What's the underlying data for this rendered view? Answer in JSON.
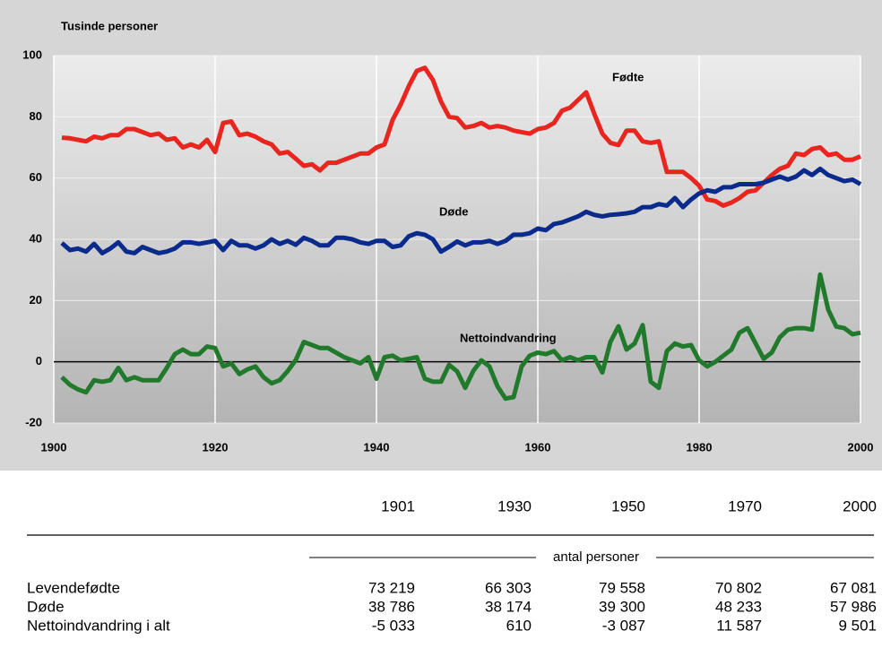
{
  "chart_data": {
    "type": "line",
    "ylabel": "Tusinde personer",
    "x": [
      1901,
      1902,
      1903,
      1904,
      1905,
      1906,
      1907,
      1908,
      1909,
      1910,
      1911,
      1912,
      1913,
      1914,
      1915,
      1916,
      1917,
      1918,
      1919,
      1920,
      1921,
      1922,
      1923,
      1924,
      1925,
      1926,
      1927,
      1928,
      1929,
      1930,
      1931,
      1932,
      1933,
      1934,
      1935,
      1936,
      1937,
      1938,
      1939,
      1940,
      1941,
      1942,
      1943,
      1944,
      1945,
      1946,
      1947,
      1948,
      1949,
      1950,
      1951,
      1952,
      1953,
      1954,
      1955,
      1956,
      1957,
      1958,
      1959,
      1960,
      1961,
      1962,
      1963,
      1964,
      1965,
      1966,
      1967,
      1968,
      1969,
      1970,
      1971,
      1972,
      1973,
      1974,
      1975,
      1976,
      1977,
      1978,
      1979,
      1980,
      1981,
      1982,
      1983,
      1984,
      1985,
      1986,
      1987,
      1988,
      1989,
      1990,
      1991,
      1992,
      1993,
      1994,
      1995,
      1996,
      1997,
      1998,
      1999,
      2000
    ],
    "series": [
      {
        "name": "Fødte",
        "color": "#e8261f",
        "values": [
          73.2,
          73,
          72.5,
          72,
          73.5,
          73,
          74,
          74,
          76,
          76,
          75,
          74,
          74.5,
          72.5,
          73,
          70,
          71,
          70,
          72.5,
          68.5,
          78,
          78.5,
          74,
          74.5,
          73.5,
          72,
          71,
          68,
          68.5,
          66.3,
          64,
          64.5,
          62.5,
          65,
          65,
          66,
          67,
          68,
          68,
          70,
          71,
          79,
          84,
          90,
          95,
          96,
          92,
          85,
          80,
          79.6,
          76.5,
          77,
          78,
          76.5,
          77,
          76.5,
          75.5,
          75,
          74.5,
          76,
          76.5,
          78,
          82,
          83,
          85.5,
          88,
          81,
          74.5,
          71.5,
          70.8,
          75.5,
          75.5,
          72,
          71.5,
          72,
          62,
          62,
          62,
          60,
          57.5,
          53,
          52.5,
          51,
          52,
          53.5,
          55.5,
          56,
          58.5,
          61,
          63,
          64,
          68,
          67.5,
          69.5,
          70,
          67.5,
          68,
          66,
          66,
          67.1
        ]
      },
      {
        "name": "Døde",
        "color": "#0a2a8c",
        "values": [
          38.8,
          36.5,
          37,
          36,
          38.5,
          35.5,
          37,
          39,
          36,
          35.5,
          37.5,
          36.5,
          35.5,
          36,
          37,
          39,
          39,
          38.5,
          39,
          39.5,
          36.5,
          39.5,
          38,
          38,
          37,
          38,
          40,
          38.5,
          39.5,
          38.2,
          40.5,
          39.5,
          38,
          38,
          40.5,
          40.5,
          40,
          39,
          38.5,
          39.5,
          39.5,
          37.5,
          38,
          41,
          42,
          41.5,
          40,
          36,
          37.5,
          39.3,
          38,
          39,
          39,
          39.5,
          38.5,
          39.5,
          41.5,
          41.5,
          42,
          43.5,
          43,
          45,
          45.5,
          46.5,
          47.5,
          49,
          48,
          47.5,
          48,
          48.2,
          48.5,
          49,
          50.5,
          50.5,
          51.5,
          51,
          53.5,
          50.5,
          53,
          55,
          56,
          55.5,
          57,
          57,
          58,
          58,
          58,
          58.5,
          59.5,
          60.5,
          59.5,
          60.5,
          62.5,
          61,
          63,
          61,
          60,
          59,
          59.5,
          58
        ]
      },
      {
        "name": "Nettoindvandring",
        "color": "#217a2b",
        "values": [
          -5,
          -7.5,
          -9,
          -10,
          -6,
          -6.5,
          -6,
          -2,
          -6,
          -5,
          -6,
          -6,
          -6,
          -2,
          2.5,
          4,
          2.5,
          2.5,
          5,
          4.5,
          -1.5,
          -0.5,
          -4,
          -2.5,
          -1.5,
          -5,
          -7,
          -6,
          -3,
          0.6,
          6.5,
          5.5,
          4.5,
          4.5,
          3,
          1.5,
          0.5,
          -0.5,
          1.5,
          -5.5,
          1.5,
          2,
          0.5,
          1,
          1.5,
          -5.5,
          -6.5,
          -6.5,
          -1,
          -3.1,
          -8.5,
          -3,
          0.5,
          -1.5,
          -8,
          -12,
          -11.5,
          -1.5,
          2,
          3,
          2.5,
          3.5,
          0.5,
          1.5,
          0.5,
          1.5,
          1.5,
          -3.5,
          6.5,
          11.6,
          4,
          6,
          12,
          -6.5,
          -8.5,
          3.5,
          6,
          5,
          5.5,
          0.5,
          -1.5,
          0,
          2,
          4,
          9.5,
          11,
          6,
          1,
          3,
          8,
          10.5,
          11,
          11,
          10.5,
          28.5,
          17,
          11.5,
          11,
          9,
          9.5
        ]
      }
    ],
    "xlim": [
      1900,
      2000
    ],
    "xticks": [
      1900,
      1920,
      1940,
      1960,
      1980,
      2000
    ],
    "ylim": [
      -20,
      100
    ],
    "yticks": [
      -20,
      0,
      20,
      40,
      60,
      80,
      100
    ],
    "grid": true
  },
  "table": {
    "columns": [
      "1901",
      "1930",
      "1950",
      "1970",
      "2000"
    ],
    "unit": "antal personer",
    "rows": [
      [
        "Levendefødte",
        "73 219",
        "66 303",
        "79 558",
        "70 802",
        "67 081"
      ],
      [
        "Døde",
        "38 786",
        "38 174",
        "39 300",
        "48 233",
        "57 986"
      ],
      [
        "Nettoindvandring i alt",
        "-5 033",
        "610",
        "-3 087",
        "11 587",
        "9 501"
      ]
    ]
  }
}
